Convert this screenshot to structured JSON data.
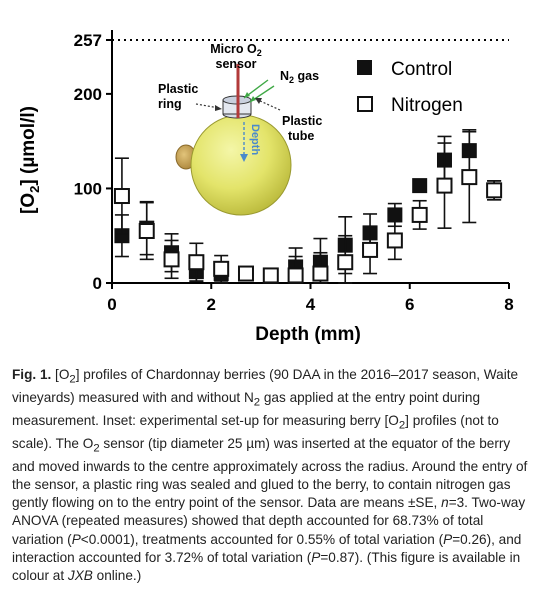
{
  "chart_data": {
    "type": "scatter",
    "xlabel": "Depth (mm)",
    "ylabel_parts": {
      "pre": "[O",
      "sub": "2",
      "post": "] (µmol/l)"
    },
    "xlim": [
      0,
      8
    ],
    "ylim": [
      0,
      257
    ],
    "x_ticks": [
      "0",
      "2",
      "4",
      "6",
      "8"
    ],
    "y_ticks": [
      "0",
      "100",
      "200",
      "257"
    ],
    "reference_line": {
      "y": 257,
      "style": "dotted"
    },
    "legend_position": "top-right",
    "grid": false,
    "series": [
      {
        "name": "Control",
        "marker": "filled-square",
        "x": [
          0.2,
          0.7,
          1.2,
          1.7,
          2.2,
          2.7,
          3.2,
          3.7,
          4.2,
          4.7,
          5.2,
          5.7,
          6.2,
          6.7,
          7.2,
          7.7
        ],
        "y": [
          50,
          58,
          32,
          12,
          10,
          10,
          7,
          17,
          22,
          40,
          53,
          72,
          103,
          130,
          140,
          98
        ],
        "err": [
          22,
          28,
          20,
          10,
          12,
          5,
          6,
          20,
          25,
          30,
          20,
          12,
          6,
          25,
          22,
          10
        ]
      },
      {
        "name": "Nitrogen",
        "marker": "open-square",
        "x": [
          0.2,
          0.7,
          1.2,
          1.7,
          2.2,
          2.7,
          3.2,
          3.7,
          4.2,
          4.7,
          5.2,
          5.7,
          6.2,
          6.7,
          7.2,
          7.7
        ],
        "y": [
          92,
          55,
          25,
          22,
          15,
          10,
          8,
          8,
          10,
          22,
          35,
          45,
          72,
          103,
          112,
          98
        ],
        "err": [
          40,
          30,
          20,
          20,
          14,
          6,
          6,
          20,
          22,
          28,
          25,
          20,
          15,
          45,
          48,
          10
        ]
      }
    ]
  },
  "inset": {
    "sensor_label_line1": "Micro O",
    "sensor_label_sub": "2",
    "sensor_label_line2": "sensor",
    "gas_label": "N",
    "gas_label_sub": "2",
    "gas_label_post": " gas",
    "ring_label_line1": "Plastic",
    "ring_label_line2": "ring",
    "tube_label_line1": "Plastic",
    "tube_label_line2": "tube",
    "depth_label": "Depth"
  },
  "caption": {
    "html": "<span class=\"fig-label\">Fig. 1.</span> [O<sub>2</sub>] profiles of Chardonnay berries (90 DAA in the 2016–2017 season, Waite vineyards) measured with and without N<sub>2</sub> gas applied at the entry point during measurement. Inset: experimental set-up for measuring berry [O<sub>2</sub>] profiles (not to scale). The O<sub>2</sub> sensor (tip diameter 25 µm) was inserted at the equator of the berry and moved inwards to the centre approximately across the radius. Around the entry of the sensor, a plastic ring was sealed and glued to the berry, to contain nitrogen gas gently flowing on to the entry point of the sensor. Data are means ±SE, <i>n</i>=3. Two-way ANOVA (repeated measures) showed that depth accounted for 68.73% of total variation (<i>P</i>&lt;0.0001), treatments accounted for 0.55% of total variation (<i>P</i>=0.26), and interaction accounted for 3.72% of total variation (<i>P</i>=0.87). (This figure is available in colour at <i>JXB</i> online.)"
  }
}
